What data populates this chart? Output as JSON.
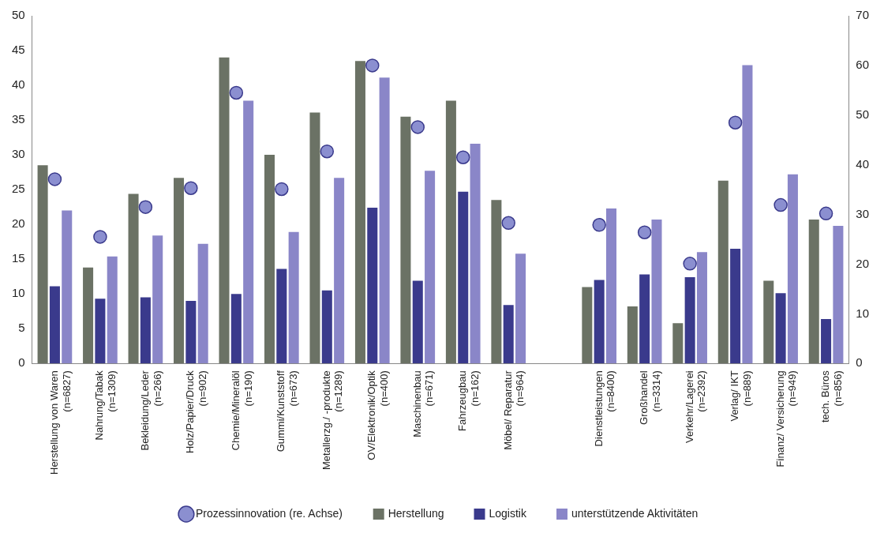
{
  "chart_data": {
    "type": "bar",
    "categories": [
      "Herstellung von Waren\n(n=6827)",
      "Nahrung/Tabak\n(n=1309)",
      "Bekleidung/Leder\n(n=266)",
      "Holz/Papier/Druck\n(n=902)",
      "Chemie/Mineralöl\n(n=190)",
      "Gummi/Kunststoff\n(n=673)",
      "Metallerzg./ -produkte\n(n=1289)",
      "OV/Elektronik/Optik\n(n=400)",
      "Maschinenbau\n(n=671)",
      "Fahrzeugbau\n(n=162)",
      "Möbel/ Reparatur\n(n=964)",
      null,
      "Dienstleistungen\n(n=8400)",
      "Großhandel\n(n=3314)",
      "Verkehr/Lagerei\n(n=2392)",
      "Verlag/ IKT\n(n=889)",
      "Finanz/ Versicherung\n(n=949)",
      "tech. Büros\n(n=856)"
    ],
    "series": [
      {
        "name": "Herstellung",
        "color": "#6b7265",
        "values": [
          28.5,
          13.8,
          24.4,
          26.7,
          44.0,
          30.0,
          36.1,
          43.5,
          35.5,
          37.8,
          23.5,
          null,
          11.0,
          8.2,
          5.8,
          26.3,
          11.9,
          20.7
        ]
      },
      {
        "name": "Logistik",
        "color": "#3a3a8c",
        "values": [
          11.1,
          9.3,
          9.5,
          9.0,
          10.0,
          13.6,
          10.5,
          22.4,
          11.9,
          24.7,
          8.4,
          null,
          12.0,
          12.8,
          12.4,
          16.5,
          10.1,
          6.4
        ]
      },
      {
        "name": "unterstützende Aktivitäten",
        "color": "#8a86c8",
        "values": [
          22.0,
          15.4,
          18.4,
          17.2,
          37.8,
          18.9,
          26.7,
          41.1,
          27.7,
          31.6,
          15.8,
          null,
          22.3,
          20.7,
          16.0,
          42.9,
          27.2,
          19.8
        ]
      },
      {
        "name": "Prozessinnovation (re. Achse)",
        "type": "scatter",
        "axis": "y2",
        "color": "#8b8fd0",
        "values": [
          37.1,
          25.5,
          31.5,
          35.3,
          54.5,
          35.1,
          42.7,
          60.0,
          47.6,
          41.5,
          28.3,
          null,
          27.9,
          26.4,
          20.1,
          48.5,
          31.9,
          30.2
        ]
      }
    ],
    "ylim": [
      0,
      50
    ],
    "yticks": [
      0,
      5,
      10,
      15,
      20,
      25,
      30,
      35,
      40,
      45,
      50
    ],
    "y2lim": [
      0,
      70
    ],
    "y2ticks": [
      0,
      10,
      20,
      30,
      40,
      50,
      60,
      70
    ],
    "grid": false,
    "legend": "bottom",
    "marker": "circle"
  }
}
